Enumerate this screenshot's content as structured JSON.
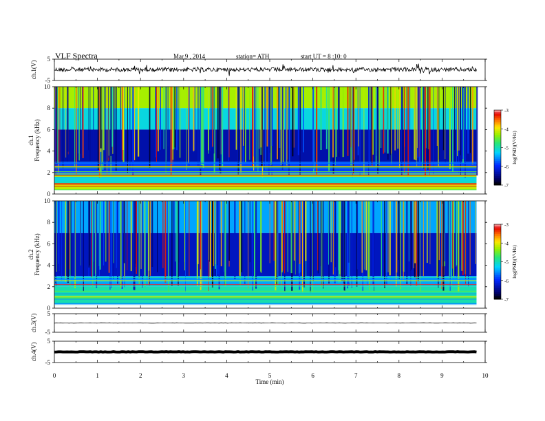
{
  "header": {
    "title": "VLF Spectra",
    "date": "Mar.9 , 2014",
    "station": "station= ATH",
    "start": "start UT = 8 :10: 0"
  },
  "chart_data": [
    {
      "type": "line",
      "panel": "ch1-waveform",
      "ylabel": "ch.1(V)",
      "ylim": [
        -5,
        5
      ],
      "yticks": [
        "5",
        "-5"
      ],
      "xlim": [
        0,
        10
      ],
      "x_end": 9.8,
      "description_level": 0.1
    },
    {
      "type": "heatmap",
      "panel": "ch1-spectrogram",
      "ylabel": "ch.1\nFrequency (kHz)",
      "ylabel_lines": [
        "ch.1",
        "Frequency (kHz)"
      ],
      "ylim": [
        0,
        10
      ],
      "yticks": [
        "0",
        "2",
        "4",
        "6",
        "8",
        "10"
      ],
      "xlim": [
        0,
        10
      ],
      "x_end": 9.8,
      "bands_khz": [
        {
          "from": 8,
          "to": 10,
          "logpsd": -4.3
        },
        {
          "from": 6,
          "to": 8,
          "logpsd": -5.2
        },
        {
          "from": 3,
          "to": 6,
          "logpsd": -6.4
        },
        {
          "from": 2,
          "to": 3,
          "logpsd": -5.9
        },
        {
          "from": 1,
          "to": 2,
          "logpsd": -5.2
        },
        {
          "from": 0.4,
          "to": 1,
          "logpsd": -4.2
        }
      ],
      "colorbar": {
        "label": "log(PSD)(V²/Hz)",
        "ticks": [
          "-3",
          "-4",
          "-5",
          "-6",
          "-7"
        ],
        "range": [
          -7,
          -3
        ]
      }
    },
    {
      "type": "heatmap",
      "panel": "ch2-spectrogram",
      "ylabel": "ch.2\nFrequency (kHz)",
      "ylabel_lines": [
        "ch.2",
        "Frequency (kHz)"
      ],
      "ylim": [
        0,
        10
      ],
      "yticks": [
        "0",
        "2",
        "4",
        "6",
        "8",
        "10"
      ],
      "xlim": [
        0,
        10
      ],
      "x_end": 9.8,
      "bands_khz": [
        {
          "from": 7,
          "to": 10,
          "logpsd": -5.5
        },
        {
          "from": 3,
          "to": 7,
          "logpsd": -6.3
        },
        {
          "from": 2,
          "to": 3,
          "logpsd": -5.5
        },
        {
          "from": 0.3,
          "to": 2,
          "logpsd": -5.0
        }
      ],
      "colorbar": {
        "label": "log(PSD)(V²/Hz)",
        "ticks": [
          "-3",
          "-4",
          "-5",
          "-6",
          "-7"
        ],
        "range": [
          -7,
          -3
        ]
      }
    },
    {
      "type": "line",
      "panel": "ch3-waveform",
      "ylabel": "ch.3(V)",
      "ylim": [
        -5,
        5
      ],
      "yticks": [
        "5",
        "-5"
      ],
      "xlim": [
        0,
        10
      ],
      "x_end": 9.8,
      "description_level": 0.0
    },
    {
      "type": "line",
      "panel": "ch4-waveform",
      "ylabel": "ch.4(V)",
      "ylim": [
        -5,
        5
      ],
      "yticks": [
        "5",
        "-5"
      ],
      "xlim": [
        0,
        10
      ],
      "x_end": 9.8,
      "description_level": 0.0
    }
  ],
  "xaxis": {
    "label": "Time (min)",
    "ticks": [
      "0",
      "1",
      "2",
      "3",
      "4",
      "5",
      "6",
      "7",
      "8",
      "9",
      "10"
    ]
  }
}
